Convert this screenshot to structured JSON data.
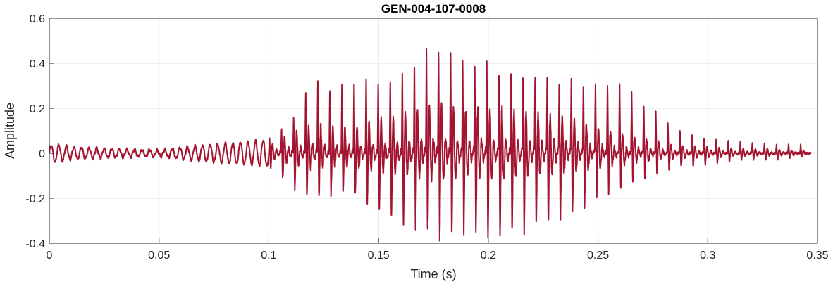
{
  "chart_data": {
    "type": "line",
    "title": "GEN-004-107-0008",
    "xlabel": "Time (s)",
    "ylabel": "Amplitude",
    "xlim": [
      0,
      0.35
    ],
    "ylim": [
      -0.4,
      0.6
    ],
    "xticks": [
      0,
      0.05,
      0.1,
      0.15,
      0.2,
      0.25,
      0.3,
      0.35
    ],
    "xtick_labels": [
      "0",
      "0.05",
      "0.1",
      "0.15",
      "0.2",
      "0.25",
      "0.3",
      "0.35"
    ],
    "yticks": [
      -0.4,
      -0.2,
      0,
      0.2,
      0.4,
      0.6
    ],
    "ytick_labels": [
      "-0.4",
      "-0.2",
      "0",
      "0.2",
      "0.4",
      "0.6"
    ],
    "grid": true,
    "series": [
      {
        "color": "#A2142F",
        "envelope": {
          "x": [
            0,
            0.003,
            0.01,
            0.03,
            0.05,
            0.07,
            0.09,
            0.1,
            0.11,
            0.12,
            0.13,
            0.14,
            0.15,
            0.16,
            0.17,
            0.175,
            0.18,
            0.19,
            0.2,
            0.21,
            0.22,
            0.23,
            0.24,
            0.25,
            0.26,
            0.27,
            0.28,
            0.29,
            0.3,
            0.31,
            0.32,
            0.33,
            0.34,
            0.347
          ],
          "y_max": [
            0.06,
            0.04,
            0.03,
            0.02,
            0.015,
            0.04,
            0.06,
            0.07,
            0.14,
            0.34,
            0.29,
            0.34,
            0.32,
            0.35,
            0.45,
            0.48,
            0.48,
            0.42,
            0.41,
            0.36,
            0.36,
            0.35,
            0.34,
            0.32,
            0.33,
            0.24,
            0.16,
            0.09,
            0.07,
            0.06,
            0.05,
            0.04,
            0.04,
            0.03
          ],
          "y_min": [
            -0.01,
            -0.05,
            -0.03,
            -0.02,
            -0.015,
            -0.04,
            -0.05,
            -0.06,
            -0.15,
            -0.22,
            -0.19,
            -0.2,
            -0.25,
            -0.3,
            -0.36,
            -0.38,
            -0.38,
            -0.34,
            -0.36,
            -0.36,
            -0.32,
            -0.3,
            -0.26,
            -0.2,
            -0.15,
            -0.12,
            -0.08,
            -0.06,
            -0.05,
            -0.04,
            -0.03,
            -0.03,
            -0.02,
            -0.01
          ]
        },
        "pulse_interval_s": 0.0055,
        "pulse_onset_s": 0.1
      }
    ]
  }
}
